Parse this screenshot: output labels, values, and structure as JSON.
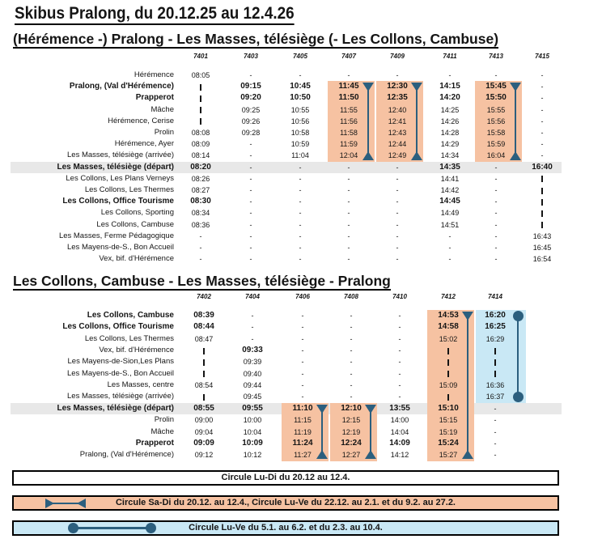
{
  "title": "Skibus Pralong, du 20.12.25 au 12.4.26",
  "colors": {
    "salmon": "#F6C2A2",
    "blue": "#C9E8F5",
    "marker": "#2C5F7E",
    "gray_row": "#E8E8E8"
  },
  "table1": {
    "heading": "(Hérémence -) Pralong - Les Masses, télésiège (- Les Collons, Cambuse)",
    "columns": [
      "7401",
      "7403",
      "7405",
      "7407",
      "7409",
      "7411",
      "7413",
      "7415"
    ],
    "rows": [
      {
        "label": "Hérémence",
        "bold": false,
        "cells": [
          "08:05",
          "-",
          "-",
          "-",
          "-",
          "-",
          "-",
          "-"
        ]
      },
      {
        "label": "Pralong, (Val d'Hérémence)",
        "bold": true,
        "cells": [
          "|",
          "*09:15",
          "*10:45",
          "*11:45",
          "*12:30",
          "*14:15",
          "*15:45",
          "-"
        ]
      },
      {
        "label": "Prapperot",
        "bold": true,
        "cells": [
          "|",
          "*09:20",
          "*10:50",
          "*11:50",
          "*12:35",
          "*14:20",
          "*15:50",
          "-"
        ]
      },
      {
        "label": "Mâche",
        "bold": false,
        "cells": [
          "|",
          "09:25",
          "10:55",
          "11:55",
          "12:40",
          "14:25",
          "15:55",
          "-"
        ]
      },
      {
        "label": "Hérémence, Cerise",
        "bold": false,
        "cells": [
          "|",
          "09:26",
          "10:56",
          "11:56",
          "12:41",
          "14:26",
          "15:56",
          "-"
        ]
      },
      {
        "label": "Prolin",
        "bold": false,
        "cells": [
          "08:08",
          "09:28",
          "10:58",
          "11:58",
          "12:43",
          "14:28",
          "15:58",
          "-"
        ]
      },
      {
        "label": "Hérémence, Ayer",
        "bold": false,
        "cells": [
          "08:09",
          "-",
          "10:59",
          "11:59",
          "12:44",
          "14:29",
          "15:59",
          "-"
        ]
      },
      {
        "label": "Les Masses, télésiège (arrivée)",
        "bold": false,
        "cells": [
          "08:14",
          "-",
          "11:04",
          "12:04",
          "12:49",
          "14:34",
          "16:04",
          "-"
        ]
      },
      {
        "label": "Les Masses, télésiège (départ)",
        "bold": true,
        "gray": true,
        "cells": [
          "*08:20",
          "-",
          "-",
          "-",
          "-",
          "*14:35",
          "-",
          "*16:40"
        ]
      },
      {
        "label": "Les Collons, Les Plans Verneys",
        "bold": false,
        "cells": [
          "08:26",
          "-",
          "-",
          "-",
          "-",
          "14:41",
          "-",
          "|"
        ]
      },
      {
        "label": "Les Collons, Les Thermes",
        "bold": false,
        "cells": [
          "08:27",
          "-",
          "-",
          "-",
          "-",
          "14:42",
          "-",
          "|"
        ]
      },
      {
        "label": "Les Collons, Office Tourisme",
        "bold": true,
        "cells": [
          "*08:30",
          "-",
          "-",
          "-",
          "-",
          "*14:45",
          "-",
          "|"
        ]
      },
      {
        "label": "Les Collons, Sporting",
        "bold": false,
        "cells": [
          "08:34",
          "-",
          "-",
          "-",
          "-",
          "14:49",
          "-",
          "|"
        ]
      },
      {
        "label": "Les Collons, Cambuse",
        "bold": false,
        "cells": [
          "08:36",
          "-",
          "-",
          "-",
          "-",
          "14:51",
          "-",
          "|"
        ]
      },
      {
        "label": "Les Masses, Ferme Pédagogique",
        "bold": false,
        "cells": [
          "-",
          "-",
          "-",
          "-",
          "-",
          "-",
          "-",
          "16:43"
        ]
      },
      {
        "label": "Les Mayens-de-S., Bon Accueil",
        "bold": false,
        "cells": [
          "-",
          "-",
          "-",
          "-",
          "-",
          "-",
          "-",
          "16:45"
        ]
      },
      {
        "label": "Vex, bif. d'Hérémence",
        "bold": false,
        "cells": [
          "-",
          "-",
          "-",
          "-",
          "-",
          "-",
          "-",
          "16:54"
        ]
      }
    ],
    "spans": [
      {
        "column": "7407",
        "from_row": 2,
        "to_row": 8,
        "fill": "salmon",
        "marker": "triangle"
      },
      {
        "column": "7409",
        "from_row": 2,
        "to_row": 8,
        "fill": "salmon",
        "marker": "triangle"
      },
      {
        "column": "7413",
        "from_row": 2,
        "to_row": 8,
        "fill": "salmon",
        "marker": "triangle"
      }
    ]
  },
  "table2": {
    "heading": "Les Collons, Cambuse - Les Masses, télésiège - Pralong",
    "columns": [
      "7402",
      "7404",
      "7406",
      "7408",
      "7410",
      "7412",
      "7414"
    ],
    "rows": [
      {
        "label": "Les Collons, Cambuse",
        "bold": true,
        "cells": [
          "*08:39",
          "-",
          "-",
          "-",
          "-",
          "*14:53",
          "*16:20"
        ]
      },
      {
        "label": "Les Collons, Office Tourisme",
        "bold": true,
        "cells": [
          "*08:44",
          "-",
          "-",
          "-",
          "-",
          "*14:58",
          "*16:25"
        ]
      },
      {
        "label": "Les Collons, Les Thermes",
        "bold": false,
        "cells": [
          "08:47",
          "-",
          "-",
          "-",
          "-",
          "15:02",
          "16:29"
        ]
      },
      {
        "label": "Vex, bif. d'Hérémence",
        "bold": false,
        "cells": [
          "|",
          "*09:33",
          "-",
          "-",
          "-",
          "|",
          "|"
        ]
      },
      {
        "label": "Les Mayens-de-Sion,Les Plans",
        "bold": false,
        "cells": [
          "|",
          "09:39",
          "-",
          "-",
          "-",
          "|",
          "|"
        ]
      },
      {
        "label": "Les Mayens-de-S., Bon Accueil",
        "bold": false,
        "cells": [
          "|",
          "09:40",
          "-",
          "-",
          "-",
          "|",
          "|"
        ]
      },
      {
        "label": "Les Masses, centre",
        "bold": false,
        "cells": [
          "08:54",
          "09:44",
          "-",
          "-",
          "-",
          "15:09",
          "16:36"
        ]
      },
      {
        "label": "Les Masses, télésiège (arrivée)",
        "bold": false,
        "cells": [
          "|",
          "09:45",
          "-",
          "-",
          "-",
          "|",
          "16:37"
        ]
      },
      {
        "label": "Les Masses, télésiège (départ)",
        "bold": true,
        "gray": true,
        "cells": [
          "*08:55",
          "*09:55",
          "*11:10",
          "*12:10",
          "*13:55",
          "*15:10",
          "-"
        ]
      },
      {
        "label": "Prolin",
        "bold": false,
        "cells": [
          "09:00",
          "10:00",
          "11:15",
          "12:15",
          "14:00",
          "15:15",
          "-"
        ]
      },
      {
        "label": "Mâche",
        "bold": false,
        "cells": [
          "09:04",
          "10:04",
          "11:19",
          "12:19",
          "14:04",
          "15:19",
          "-"
        ]
      },
      {
        "label": "Prapperot",
        "bold": true,
        "cells": [
          "*09:09",
          "*10:09",
          "*11:24",
          "*12:24",
          "*14:09",
          "*15:24",
          "-"
        ]
      },
      {
        "label": "Pralong, (Val d'Hérémence)",
        "bold": false,
        "cells": [
          "09:12",
          "10:12",
          "11:27",
          "12:27",
          "14:12",
          "15:27",
          "-"
        ]
      }
    ],
    "spans": [
      {
        "column": "7406",
        "from_row": 9,
        "to_row": 13,
        "fill": "salmon",
        "marker": "triangle"
      },
      {
        "column": "7408",
        "from_row": 9,
        "to_row": 13,
        "fill": "salmon",
        "marker": "triangle"
      },
      {
        "column": "7412",
        "from_row": 1,
        "to_row": 13,
        "fill": "salmon",
        "marker": "triangle"
      },
      {
        "column": "7414",
        "from_row": 1,
        "to_row": 8,
        "fill": "blue",
        "marker": "circle"
      }
    ]
  },
  "legend": [
    {
      "text": "Circule Lu-Di du 20.12 au 12.4.",
      "bg": "#FFFFFF",
      "marker": "none"
    },
    {
      "text": "Circule Sa-Di du 20.12. au 12.4., Circule Lu-Ve du 22.12. au 2.1. et du 9.2. au 27.2.",
      "bg": "#F6C2A2",
      "marker": "triangle-span"
    },
    {
      "text": "Circule Lu-Ve du 5.1. au 6.2. et du 2.3. au 10.4.",
      "bg": "#C9E8F5",
      "marker": "circle-span"
    }
  ]
}
